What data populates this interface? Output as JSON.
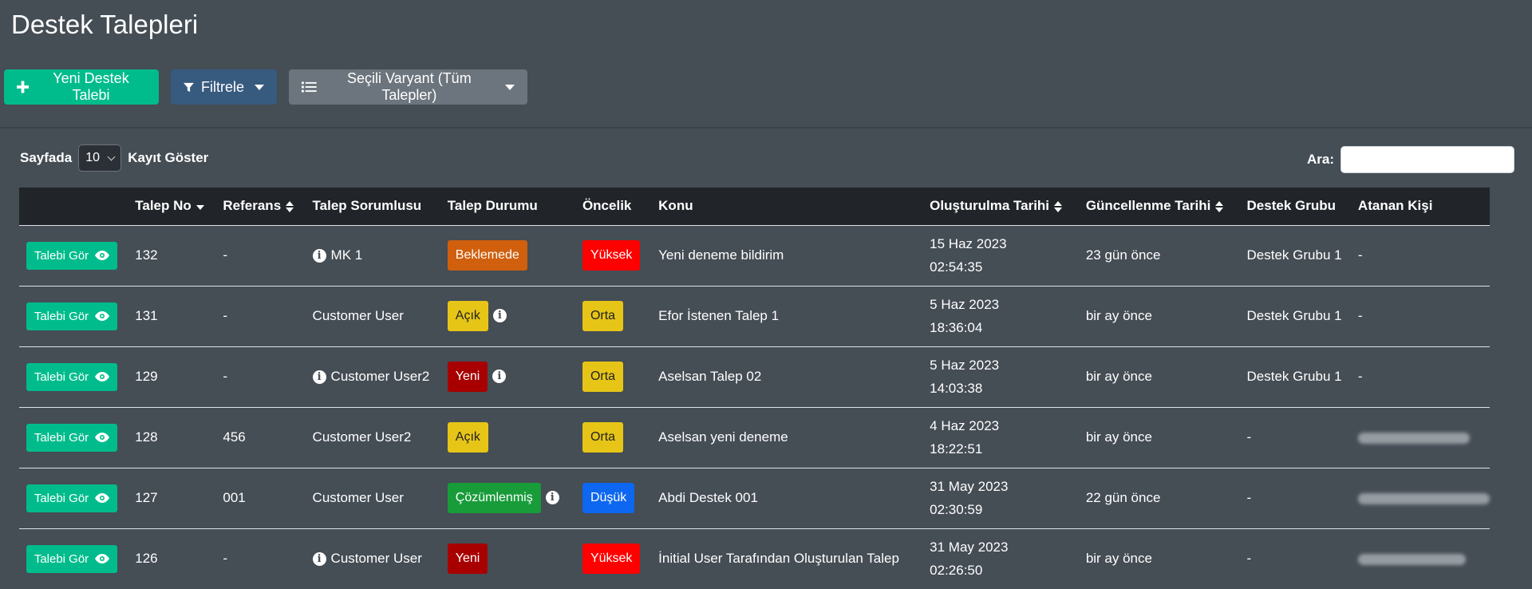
{
  "page": {
    "title": "Destek Talepleri"
  },
  "toolbar": {
    "new_ticket": "Yeni Destek Talebi",
    "filter": "Filtrele",
    "variant": "Seçili Varyant (Tüm Talepler)"
  },
  "controls": {
    "show_prefix": "Sayfada",
    "page_size": "10",
    "show_suffix": "Kayıt Göster",
    "search_label": "Ara:",
    "search_value": ""
  },
  "table": {
    "headers": [
      "",
      "Talep No",
      "Referans",
      "Talep Sorumlusu",
      "Talep Durumu",
      "Öncelik",
      "Konu",
      "Oluşturulma Tarihi",
      "Güncellenme Tarihi",
      "Destek Grubu",
      "Atanan Kişi"
    ],
    "view_label": "Talebi Gör",
    "rows": [
      {
        "no": "132",
        "ref": "-",
        "owner": "MK 1",
        "owner_info": true,
        "status": "Beklemede",
        "status_info": false,
        "priority": "Yüksek",
        "subject": "Yeni deneme bildirim",
        "created_date": "15 Haz 2023",
        "created_time": "02:54:35",
        "updated": "23 gün önce",
        "group": "Destek Grubu 1",
        "assignee": "-"
      },
      {
        "no": "131",
        "ref": "-",
        "owner": "Customer User",
        "owner_info": false,
        "status": "Açık",
        "status_info": true,
        "priority": "Orta",
        "subject": "Efor İstenen Talep 1",
        "created_date": "5 Haz 2023",
        "created_time": "18:36:04",
        "updated": "bir ay önce",
        "group": "Destek Grubu 1",
        "assignee": "-"
      },
      {
        "no": "129",
        "ref": "-",
        "owner": "Customer User2",
        "owner_info": true,
        "status": "Yeni",
        "status_info": true,
        "priority": "Orta",
        "subject": "Aselsan Talep 02",
        "created_date": "5 Haz 2023",
        "created_time": "14:03:38",
        "updated": "bir ay önce",
        "group": "Destek Grubu 1",
        "assignee": "-"
      },
      {
        "no": "128",
        "ref": "456",
        "owner": "Customer User2",
        "owner_info": false,
        "status": "Açık",
        "status_info": false,
        "priority": "Orta",
        "subject": "Aselsan yeni deneme",
        "created_date": "4 Haz 2023",
        "created_time": "18:22:51",
        "updated": "bir ay önce",
        "group": "-",
        "assignee": ""
      },
      {
        "no": "127",
        "ref": "001",
        "owner": "Customer User",
        "owner_info": false,
        "status": "Çözümlenmiş",
        "status_info": true,
        "priority": "Düşük",
        "subject": "Abdi Destek 001",
        "created_date": "31 May 2023",
        "created_time": "02:30:59",
        "updated": "22 gün önce",
        "group": "-",
        "assignee": ""
      },
      {
        "no": "126",
        "ref": "-",
        "owner": "Customer User",
        "owner_info": true,
        "status": "Yeni",
        "status_info": false,
        "priority": "Yüksek",
        "subject": "İnitial User Tarafından Oluşturulan Talep",
        "created_date": "31 May 2023",
        "created_time": "02:26:50",
        "updated": "bir ay önce",
        "group": "-",
        "assignee": ""
      }
    ]
  },
  "colors": {
    "accent": "#00bc8c",
    "filter": "#375a7f",
    "variant": "#6c757d",
    "header_bg": "#212529",
    "page_bg": "#454d55"
  }
}
